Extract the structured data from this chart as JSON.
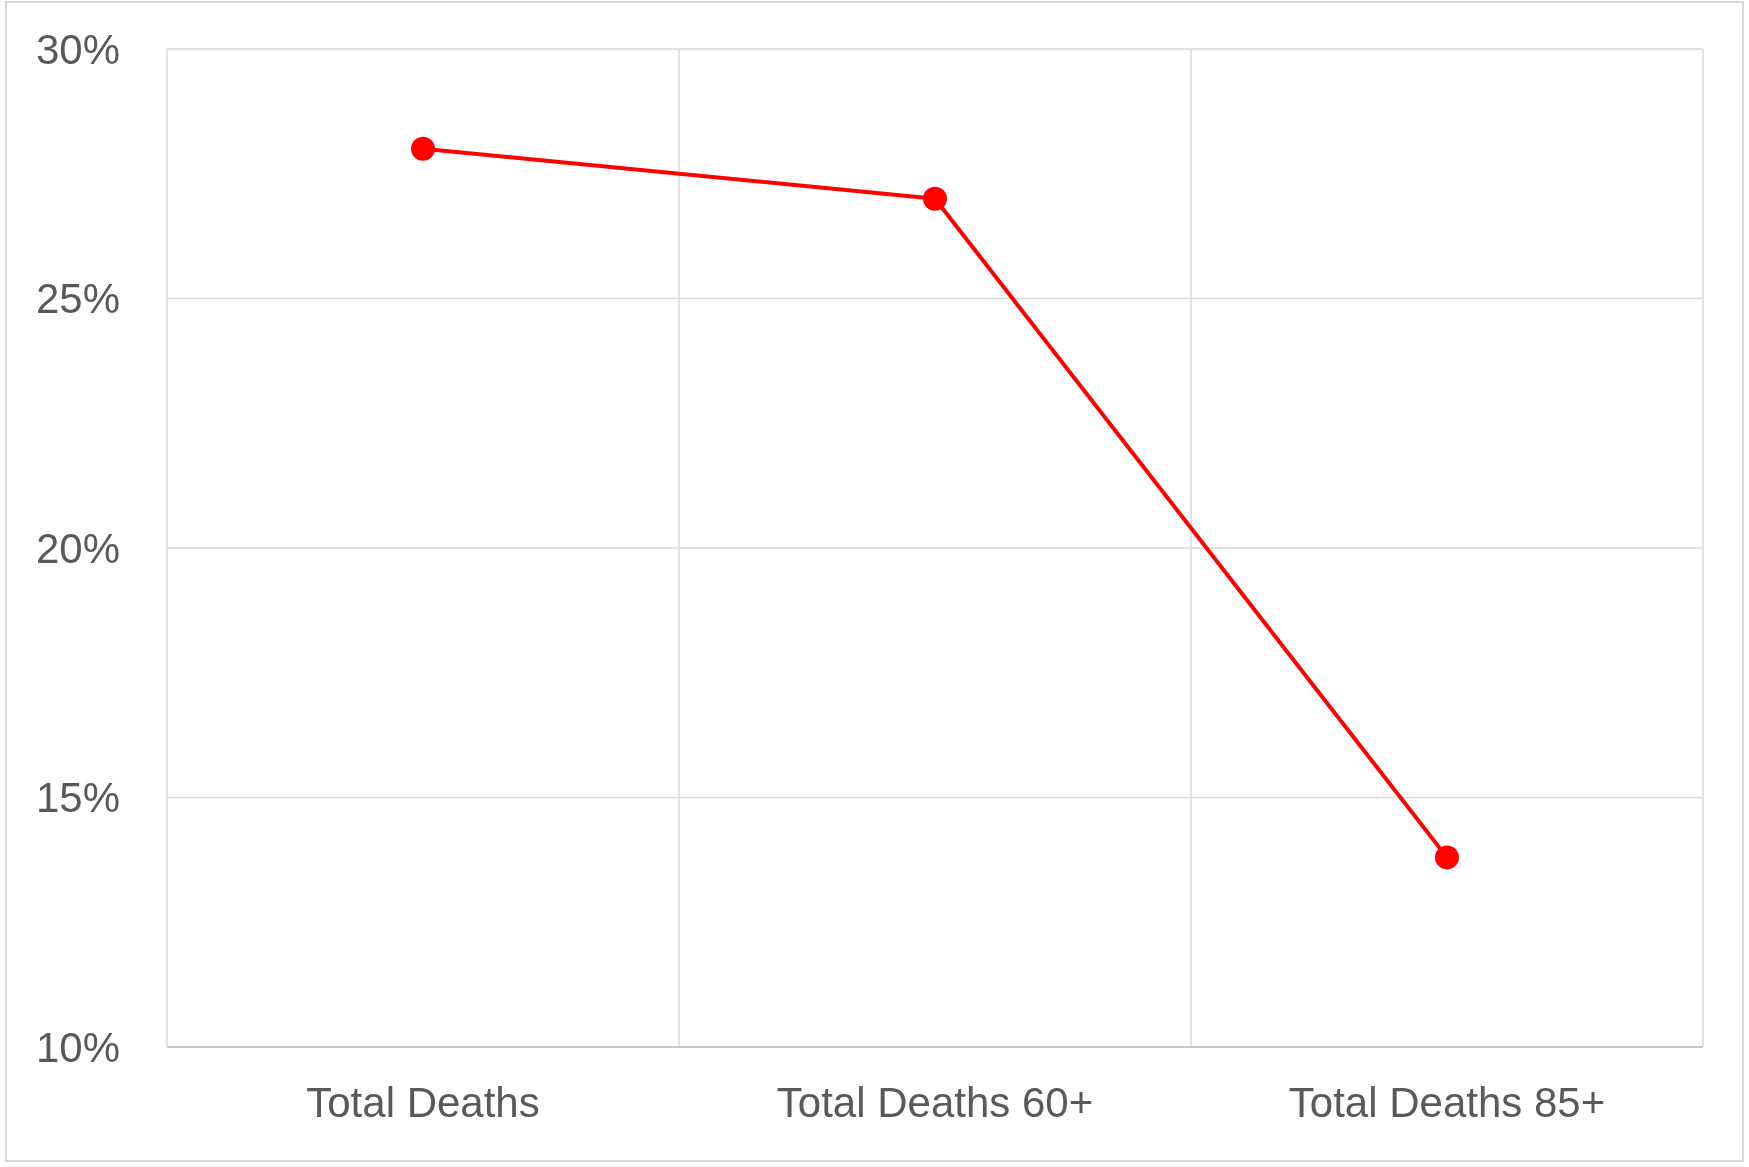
{
  "chart_data": {
    "type": "line",
    "categories": [
      "Total Deaths",
      "Total Deaths 60+",
      "Total Deaths 85+"
    ],
    "series": [
      {
        "color": "#ff0000",
        "values": [
          28,
          27,
          13.8
        ]
      }
    ],
    "ylim": [
      10,
      30
    ],
    "yticks": [
      {
        "value": 10,
        "label": "10%"
      },
      {
        "value": 15,
        "label": "15%"
      },
      {
        "value": 20,
        "label": "20%"
      },
      {
        "value": 25,
        "label": "25%"
      },
      {
        "value": 30,
        "label": "30%"
      }
    ],
    "grid": true,
    "marker": "circle",
    "line_style": "solid"
  }
}
